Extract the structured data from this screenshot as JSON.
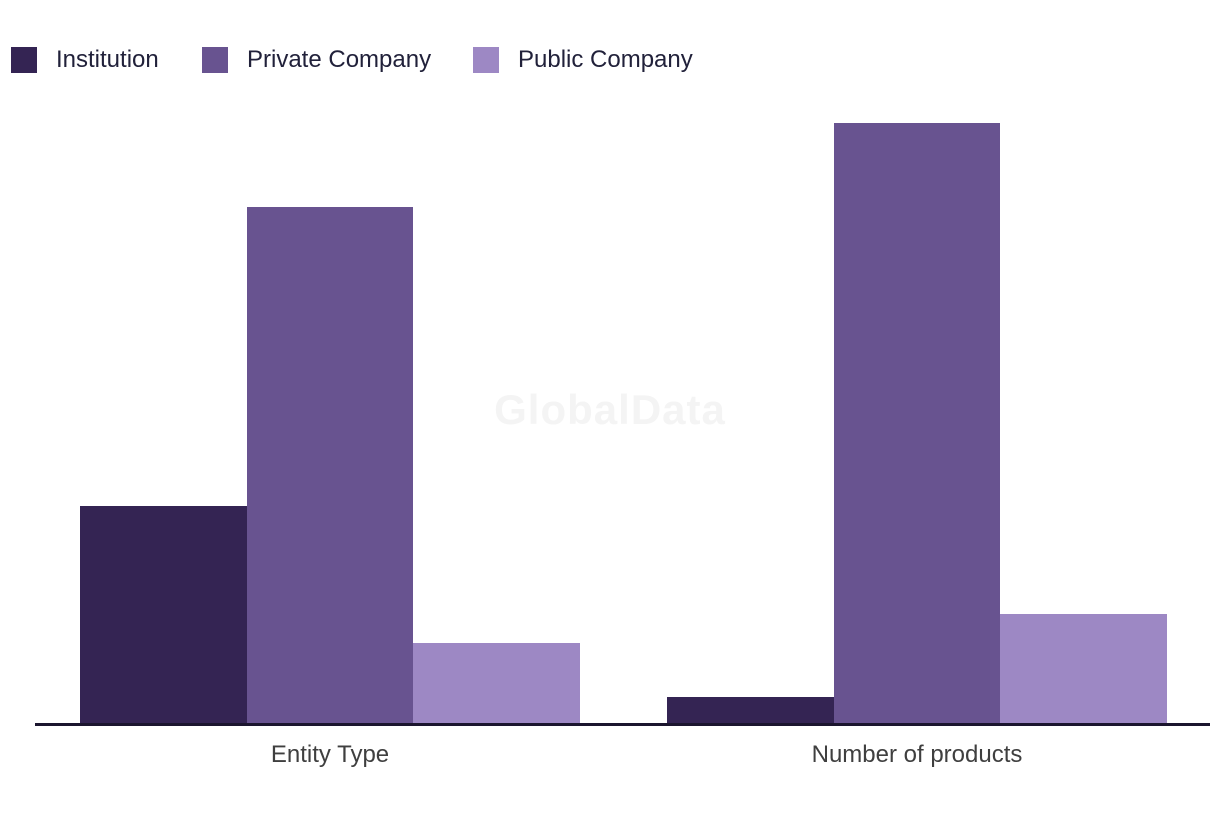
{
  "watermark": {
    "text": "GlobalData"
  },
  "colors": {
    "background": "#FFFFFF",
    "axis_line": "#1B152E",
    "category_label_text": "#3F3F3F",
    "legend_text": "#21213A",
    "watermark_text": "#F4F4F4"
  },
  "chart_data": {
    "type": "bar",
    "title": "",
    "xlabel": "",
    "ylabel": "",
    "categories": [
      "Entity Type",
      "Number of products"
    ],
    "series": [
      {
        "name": "Institution",
        "color": "#342453",
        "values": [
          217,
          26
        ]
      },
      {
        "name": "Private Company",
        "color": "#685390",
        "values": [
          516,
          600
        ]
      },
      {
        "name": "Public Company",
        "color": "#9D88C4",
        "values": [
          80,
          109
        ]
      }
    ],
    "ylim": [
      0,
      660
    ],
    "y_axis_visible": false,
    "value_note": "No y-axis or data labels shown; values are relative bar heights (pixels above baseline).",
    "grid": false,
    "legend_position": "top-left"
  }
}
